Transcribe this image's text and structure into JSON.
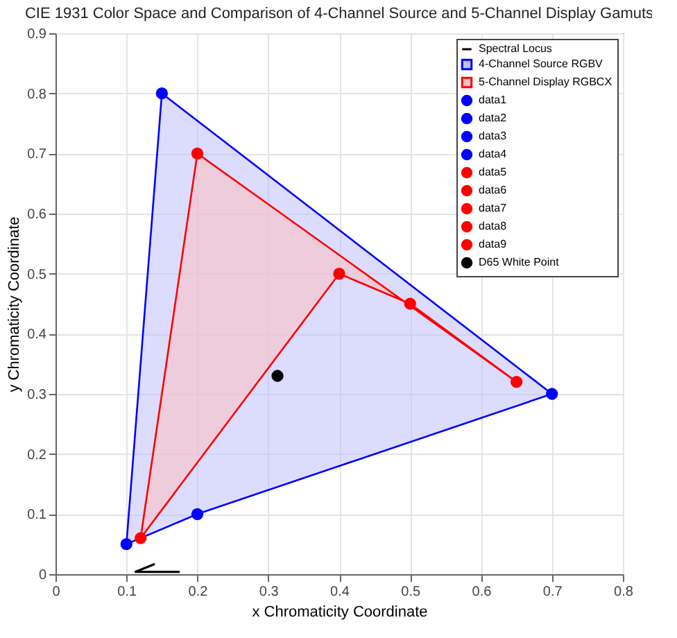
{
  "chart_data": {
    "type": "scatter",
    "title": "CIE 1931 Color Space and Comparison of 4-Channel Source and 5-Channel Display Gamuts",
    "xlabel": "x Chromaticity Coordinate",
    "ylabel": "y Chromaticity Coordinate",
    "xlim": [
      0,
      0.8
    ],
    "ylim": [
      0,
      0.9
    ],
    "xticks": [
      0,
      0.1,
      0.2,
      0.3,
      0.4,
      0.5,
      0.6,
      0.7,
      0.8
    ],
    "yticks": [
      0,
      0.1,
      0.2,
      0.3,
      0.4,
      0.5,
      0.6,
      0.7,
      0.8,
      0.9
    ],
    "grid": true,
    "legend": "top right",
    "series": [
      {
        "name": "Spectral Locus",
        "type": "line",
        "color": "#000000",
        "x": [
          0.14,
          0.113,
          0.175
        ],
        "values": [
          0.017,
          0.004,
          0.004
        ]
      },
      {
        "name": "4-Channel Source RGBV",
        "type": "area",
        "color": "#0000ff",
        "x": [
          0.15,
          0.7,
          0.2,
          0.1,
          0.15
        ],
        "values": [
          0.8,
          0.3,
          0.1,
          0.05,
          0.8
        ]
      },
      {
        "name": "5-Channel Display RGBCX",
        "type": "area",
        "color": "#ff0000",
        "x": [
          0.2,
          0.65,
          0.5,
          0.4,
          0.12,
          0.2
        ],
        "values": [
          0.7,
          0.32,
          0.45,
          0.5,
          0.06,
          0.7
        ]
      },
      {
        "name": "data1",
        "type": "scatter",
        "color": "#0000ff",
        "x": [
          0.7
        ],
        "values": [
          0.3
        ]
      },
      {
        "name": "data2",
        "type": "scatter",
        "color": "#0000ff",
        "x": [
          0.15
        ],
        "values": [
          0.8
        ]
      },
      {
        "name": "data3",
        "type": "scatter",
        "color": "#0000ff",
        "x": [
          0.1
        ],
        "values": [
          0.05
        ]
      },
      {
        "name": "data4",
        "type": "scatter",
        "color": "#0000ff",
        "x": [
          0.2
        ],
        "values": [
          0.1
        ]
      },
      {
        "name": "data5",
        "type": "scatter",
        "color": "#ff0000",
        "x": [
          0.65
        ],
        "values": [
          0.32
        ]
      },
      {
        "name": "data6",
        "type": "scatter",
        "color": "#ff0000",
        "x": [
          0.2
        ],
        "values": [
          0.7
        ]
      },
      {
        "name": "data7",
        "type": "scatter",
        "color": "#ff0000",
        "x": [
          0.12
        ],
        "values": [
          0.06
        ]
      },
      {
        "name": "data8",
        "type": "scatter",
        "color": "#ff0000",
        "x": [
          0.5
        ],
        "values": [
          0.45
        ]
      },
      {
        "name": "data9",
        "type": "scatter",
        "color": "#ff0000",
        "x": [
          0.4
        ],
        "values": [
          0.5
        ]
      },
      {
        "name": "D65 White Point",
        "type": "scatter",
        "color": "#000000",
        "x": [
          0.313
        ],
        "values": [
          0.33
        ]
      }
    ]
  }
}
